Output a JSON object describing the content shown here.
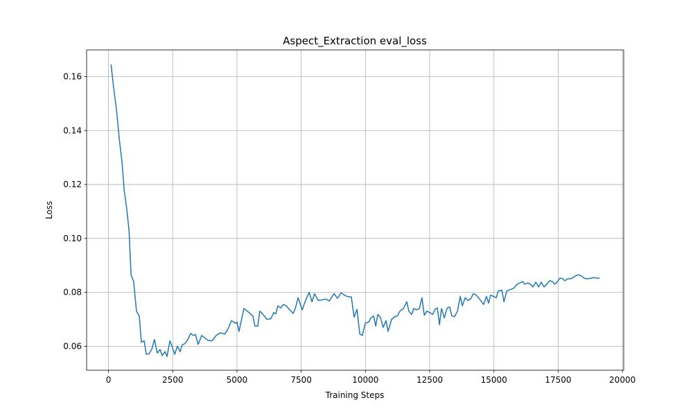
{
  "chart_data": {
    "type": "line",
    "title": "Aspect_Extraction eval_loss",
    "xlabel": "Training Steps",
    "ylabel": "Loss",
    "x": [
      100,
      200,
      310,
      420,
      530,
      610,
      710,
      800,
      880,
      980,
      1090,
      1200,
      1280,
      1390,
      1470,
      1580,
      1690,
      1790,
      1900,
      2010,
      2090,
      2200,
      2280,
      2390,
      2490,
      2580,
      2680,
      2790,
      2870,
      2980,
      3090,
      3200,
      3300,
      3390,
      3490,
      3630,
      3870,
      4030,
      4190,
      4360,
      4520,
      4630,
      4790,
      4950,
      5000,
      5080,
      5270,
      5430,
      5620,
      5700,
      5810,
      5890,
      6000,
      6160,
      6320,
      6430,
      6510,
      6590,
      6700,
      6810,
      6920,
      7050,
      7190,
      7270,
      7380,
      7540,
      7670,
      7810,
      7920,
      8020,
      8160,
      8320,
      8450,
      8590,
      8780,
      8910,
      9050,
      9210,
      9320,
      9450,
      9560,
      9670,
      9780,
      9880,
      9990,
      10130,
      10210,
      10320,
      10400,
      10480,
      10590,
      10690,
      10800,
      10880,
      11020,
      11150,
      11240,
      11340,
      11480,
      11610,
      11690,
      11800,
      11880,
      11990,
      12100,
      12200,
      12290,
      12390,
      12500,
      12610,
      12720,
      12800,
      12880,
      12960,
      13070,
      13180,
      13280,
      13360,
      13470,
      13580,
      13690,
      13770,
      13880,
      13980,
      14090,
      14200,
      14310,
      14440,
      14600,
      14710,
      14790,
      14870,
      14980,
      15090,
      15170,
      15310,
      15390,
      15500,
      15630,
      15770,
      15900,
      16010,
      16120,
      16200,
      16310,
      16420,
      16520,
      16630,
      16740,
      16840,
      16950,
      17060,
      17160,
      17280,
      17360,
      17460,
      17570,
      17680,
      17760,
      17870,
      17980,
      18090,
      18190,
      18300,
      18410,
      18520,
      18630,
      18760,
      18890,
      19000,
      19110
    ],
    "series": [
      {
        "name": "eval_loss",
        "color": "#1f77b4",
        "values": [
          0.1645,
          0.156,
          0.148,
          0.137,
          0.128,
          0.118,
          0.111,
          0.103,
          0.0865,
          0.084,
          0.073,
          0.0712,
          0.0615,
          0.062,
          0.057,
          0.0572,
          0.059,
          0.0625,
          0.0575,
          0.0588,
          0.0565,
          0.058,
          0.0562,
          0.062,
          0.0595,
          0.057,
          0.06,
          0.058,
          0.0605,
          0.061,
          0.0625,
          0.0648,
          0.064,
          0.0643,
          0.0607,
          0.064,
          0.0622,
          0.062,
          0.064,
          0.065,
          0.0645,
          0.066,
          0.0695,
          0.0685,
          0.069,
          0.0655,
          0.074,
          0.0728,
          0.0712,
          0.0675,
          0.0675,
          0.073,
          0.072,
          0.07,
          0.0702,
          0.0725,
          0.072,
          0.075,
          0.0742,
          0.0755,
          0.075,
          0.0735,
          0.0722,
          0.074,
          0.078,
          0.0735,
          0.077,
          0.08,
          0.0765,
          0.0795,
          0.077,
          0.0772,
          0.0775,
          0.0768,
          0.0795,
          0.0778,
          0.0798,
          0.0788,
          0.0784,
          0.0783,
          0.0708,
          0.0737,
          0.0645,
          0.064,
          0.0685,
          0.069,
          0.0705,
          0.0712,
          0.0675,
          0.0718,
          0.0705,
          0.067,
          0.0695,
          0.0655,
          0.07,
          0.071,
          0.0712,
          0.073,
          0.074,
          0.0765,
          0.073,
          0.0718,
          0.074,
          0.0735,
          0.074,
          0.078,
          0.0715,
          0.073,
          0.0725,
          0.0718,
          0.0738,
          0.0742,
          0.068,
          0.074,
          0.0705,
          0.0742,
          0.0745,
          0.0713,
          0.071,
          0.073,
          0.0785,
          0.075,
          0.078,
          0.077,
          0.0775,
          0.0795,
          0.079,
          0.0775,
          0.0755,
          0.0785,
          0.076,
          0.079,
          0.0785,
          0.078,
          0.0805,
          0.0808,
          0.0765,
          0.0805,
          0.081,
          0.0815,
          0.083,
          0.0835,
          0.084,
          0.083,
          0.0835,
          0.083,
          0.082,
          0.0838,
          0.082,
          0.0838,
          0.082,
          0.083,
          0.0843,
          0.084,
          0.083,
          0.0838,
          0.0853,
          0.085,
          0.0843,
          0.085,
          0.085,
          0.0855,
          0.0862,
          0.0865,
          0.086,
          0.0852,
          0.085,
          0.0852,
          0.0855,
          0.0852,
          0.0853
        ]
      }
    ],
    "xlim": [
      -850,
      20050
    ],
    "ylim": [
      0.0511,
      0.1699
    ],
    "xticks": [
      0,
      2500,
      5000,
      7500,
      10000,
      12500,
      15000,
      17500,
      20000
    ],
    "yticks": [
      0.06,
      0.08,
      {
        "value": 0.1,
        "label": "0.10"
      },
      0.12,
      0.14,
      0.16
    ],
    "grid": true
  }
}
